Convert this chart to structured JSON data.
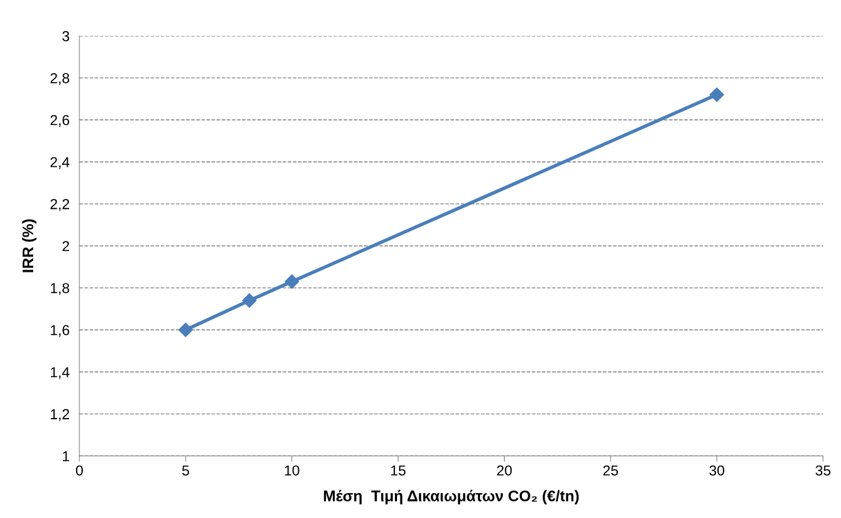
{
  "chart_data": {
    "type": "line",
    "xlabel": "Μέση  Τιμή Δικαιωμάτων CO₂ (€/tn)",
    "ylabel": "IRR (%)",
    "series": [
      {
        "color": "#4a7ebb",
        "x": [
          5,
          8,
          10,
          30
        ],
        "values": [
          1.6,
          1.74,
          1.83,
          2.72
        ]
      }
    ],
    "xlim": [
      0,
      35
    ],
    "xticks": [
      0,
      5,
      10,
      15,
      20,
      25,
      30,
      35
    ],
    "ylim": [
      1,
      3
    ],
    "yticks": [
      1,
      {
        "value": 1.2,
        "label": "1,2"
      },
      {
        "value": 1.4,
        "label": "1,4"
      },
      {
        "value": 1.6,
        "label": "1,6"
      },
      {
        "value": 1.8,
        "label": "1,8"
      },
      2,
      {
        "value": 2.2,
        "label": "2,2"
      },
      {
        "value": 2.4,
        "label": "2,4"
      },
      {
        "value": 2.6,
        "label": "2,6"
      },
      {
        "value": 2.8,
        "label": "2,8"
      },
      3
    ],
    "grid": "y",
    "marker": "diamond",
    "line_style": "solid",
    "legend": false
  }
}
